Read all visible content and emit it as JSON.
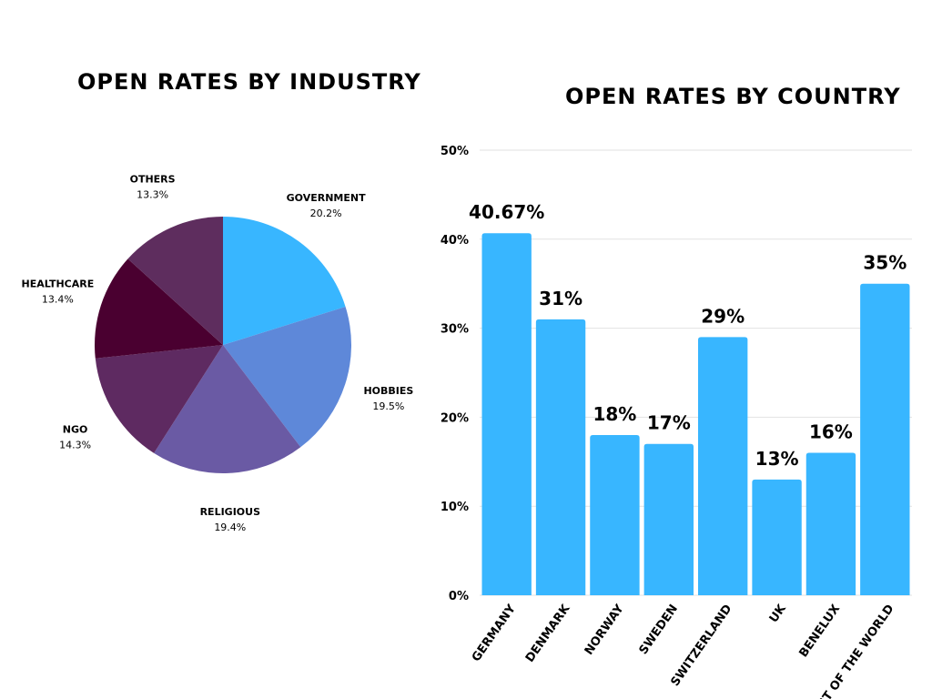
{
  "chart_data": [
    {
      "type": "pie",
      "title": "OPEN RATES BY INDUSTRY",
      "categories": [
        "GOVERNMENT",
        "HOBBIES",
        "RELIGIOUS",
        "NGO",
        "HEALTHCARE",
        "OTHERS"
      ],
      "values": [
        20.2,
        19.5,
        19.4,
        14.3,
        13.4,
        13.3
      ],
      "value_labels": [
        "20.2%",
        "19.5%",
        "19.4%",
        "14.3%",
        "13.4%",
        "13.3%"
      ],
      "colors": [
        "#38b6ff",
        "#5e88d9",
        "#6a5aa4",
        "#5e2a61",
        "#4a0030",
        "#5e2d5e"
      ]
    },
    {
      "type": "bar",
      "title": "OPEN RATES BY COUNTRY",
      "categories": [
        "GERMANY",
        "DENMARK",
        "NORWAY",
        "SWEDEN",
        "SWITZERLAND",
        "UK",
        "BENELUX",
        "REST OF THE WORLD"
      ],
      "values": [
        40.67,
        31,
        18,
        17,
        29,
        13,
        16,
        35
      ],
      "value_labels": [
        "40.67%",
        "31%",
        "18%",
        "17%",
        "29%",
        "13%",
        "16%",
        "35%"
      ],
      "ylim": [
        0,
        50
      ],
      "yticks": [
        "0%",
        "10%",
        "20%",
        "30%",
        "40%",
        "50%"
      ],
      "grid": true,
      "xlabel": "",
      "ylabel": "",
      "bar_color": "#38b6ff"
    }
  ]
}
